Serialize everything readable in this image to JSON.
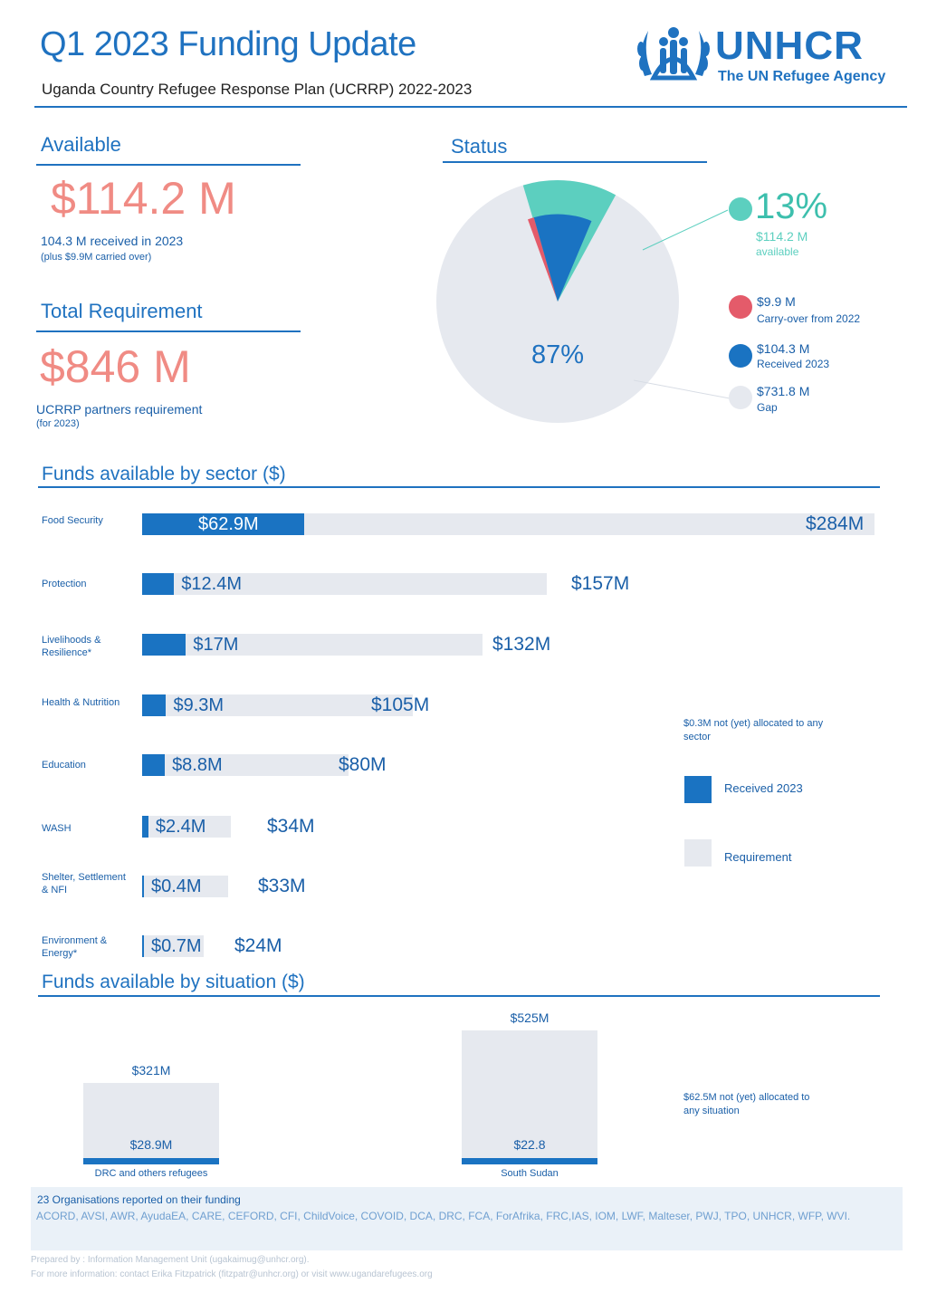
{
  "header": {
    "title": "Q1 2023 Funding Update",
    "subtitle": "Uganda Country Refugee Response Plan (UCRRP) 2022-2023",
    "logo_word": "UNHCR",
    "logo_tagline": "The UN Refugee Agency"
  },
  "available": {
    "heading": "Available",
    "amount": "$114.2 M",
    "note": "104.3 M received in 2023",
    "subnote": "(plus $9.9M carried over)"
  },
  "requirement": {
    "heading": "Total Requirement",
    "amount": "$846 M",
    "note": "UCRRP partners requirement",
    "subnote": "(for 2023)"
  },
  "status": {
    "heading": "Status",
    "available_pct": "13%",
    "available_amount": "$114.2 M",
    "available_label": "available",
    "gap_pct": "87%",
    "legend": [
      {
        "value": "$9.9 M",
        "label": "Carry-over from 2022",
        "color": "#e45b6a"
      },
      {
        "value": "$104.3 M",
        "label": "Received 2023",
        "color": "#1a73c2"
      },
      {
        "value": "$731.8 M",
        "label": "Gap",
        "color": "#e6e9ef"
      }
    ],
    "available_color": "#5ccfbf"
  },
  "colors": {
    "accent": "#1f72c0",
    "highlight": "#f08b84",
    "received": "#1a73c2",
    "requirement": "#e6e9ef",
    "carryover": "#e45b6a",
    "available_ring": "#5ccfbf"
  },
  "sectors": {
    "heading": "Funds available by sector ($)",
    "unallocated_note": "$0.3M not (yet) allocated to any sector",
    "legend_received": "Received 2023",
    "legend_requirement": "Requirement"
  },
  "situations": {
    "heading": "Funds available by situation ($)",
    "unallocated_note": "$62.5M not (yet) allocated to any situation"
  },
  "chart_data": [
    {
      "type": "pie",
      "title": "Status",
      "slices": [
        {
          "label": "Carry-over from 2022",
          "value": 9.9
        },
        {
          "label": "Received 2023",
          "value": 104.3
        },
        {
          "label": "Gap",
          "value": 731.8
        }
      ],
      "annotations": [
        "13%",
        "87%"
      ]
    },
    {
      "type": "bar",
      "title": "Funds available by sector ($)",
      "orientation": "horizontal",
      "categories": [
        "Food Security",
        "Protection",
        "Livelihoods & Resilience*",
        "Health & Nutrition",
        "Education",
        "WASH",
        "Shelter, Settlement & NFI",
        "Environment & Energy*"
      ],
      "series": [
        {
          "name": "Received 2023",
          "values": [
            62.9,
            12.4,
            17,
            9.3,
            8.8,
            2.4,
            0.4,
            0.7
          ],
          "labels": [
            "$62.9M",
            "$12.4M",
            "$17M",
            "$9.3M",
            "$8.8M",
            "$2.4M",
            "$0.4M",
            "$0.7M"
          ]
        },
        {
          "name": "Requirement",
          "values": [
            284,
            157,
            132,
            105,
            80,
            34,
            33,
            24
          ],
          "labels": [
            "$284M",
            "$157M",
            "$132M",
            "$105M",
            "$80M",
            "$34M",
            "$33M",
            "$24M"
          ]
        }
      ]
    },
    {
      "type": "bar",
      "title": "Funds available by situation ($)",
      "categories": [
        "DRC and others refugees",
        "South Sudan"
      ],
      "series": [
        {
          "name": "Requirement",
          "values": [
            321,
            525
          ],
          "labels": [
            "$321M",
            "$525M"
          ]
        },
        {
          "name": "Received 2023",
          "values": [
            28.9,
            22.8
          ],
          "labels": [
            "$28.9M",
            "$22.8"
          ]
        }
      ]
    }
  ],
  "footer": {
    "org_title": "23 Organisations reported on their funding",
    "org_list": "ACORD, AVSI, AWR, AyudaEA, CARE, CEFORD, CFI, ChildVoice, COVOID, DCA, DRC, FCA, ForAfrika, FRC,IAS, IOM, LWF, Malteser, PWJ, TPO, UNHCR, WFP, WVI.",
    "prepared_by": "Prepared by : Information Management Unit (ugakaimug@unhcr.org).",
    "more_info": "For more information: contact Erika Fitzpatrick (fitzpatr@unhcr.org) or visit www.ugandarefugees.org"
  }
}
